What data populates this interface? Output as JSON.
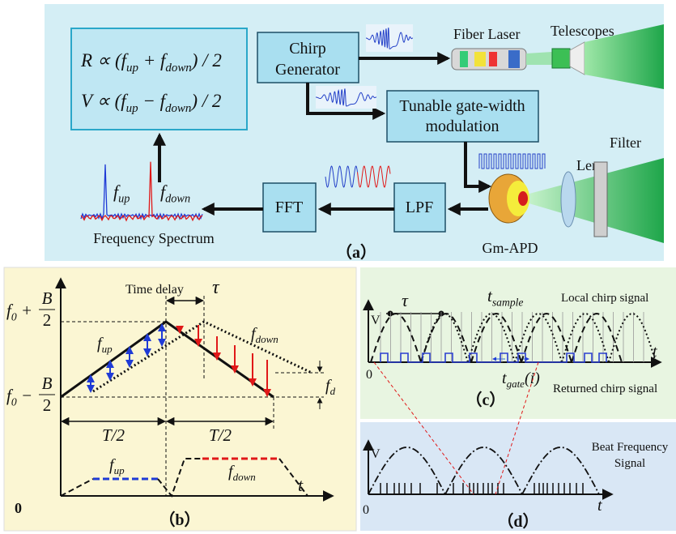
{
  "panel_a": {
    "formula_r": [
      "R ∝ (f",
      "up",
      " + f",
      "down",
      ") / 2"
    ],
    "formula_v": [
      "V ∝ (f",
      "up",
      " − f",
      "down",
      ") / 2"
    ],
    "chirp_generator": [
      "Chirp",
      "Generator"
    ],
    "fiber_laser": "Fiber Laser",
    "telescopes": "Telescopes",
    "gate_modulation": [
      "Tunable gate-width",
      "modulation"
    ],
    "filter": "Filter",
    "lens": "Lens",
    "detector": "Gm-APD",
    "lpf": "LPF",
    "fft": "FFT",
    "peak_up": [
      "f",
      "up"
    ],
    "peak_down": [
      "f",
      "down"
    ],
    "spectrum": "Frequency Spectrum",
    "caption": "（a）"
  },
  "panel_b": {
    "top_freq": {
      "segments": [
        "f",
        "0",
        " +"
      ],
      "numerator": "B",
      "denominator": "2"
    },
    "bottom_freq": {
      "segments": [
        "f",
        "0",
        " −"
      ],
      "numerator": "B",
      "denominator": "2"
    },
    "time_delay": "Time delay",
    "tau": "τ",
    "f_up": [
      "f",
      "up"
    ],
    "f_down": [
      "f",
      "down"
    ],
    "f_d": [
      "f",
      "d"
    ],
    "half_period_left": "T/2",
    "half_period_right": "T/2",
    "beat_up": [
      "f",
      "up"
    ],
    "beat_down": [
      "f",
      "down"
    ],
    "origin": "0",
    "t_axis": "t",
    "caption": "（b）"
  },
  "panel_c": {
    "tau": "τ",
    "t_sample": [
      "t",
      "sample"
    ],
    "local_chirp": "Local chirp signal",
    "v_axis": "V",
    "origin": "0",
    "t_axis": "t",
    "t_gate": [
      "t",
      "gate",
      "(i)"
    ],
    "returned_chirp": "Returned chirp signal",
    "caption": "（c）"
  },
  "panel_d": {
    "v_axis": "V",
    "beat_signal": [
      "Beat Frequency",
      "Signal"
    ],
    "origin": "0",
    "t_axis": "t",
    "caption": "（d）"
  }
}
